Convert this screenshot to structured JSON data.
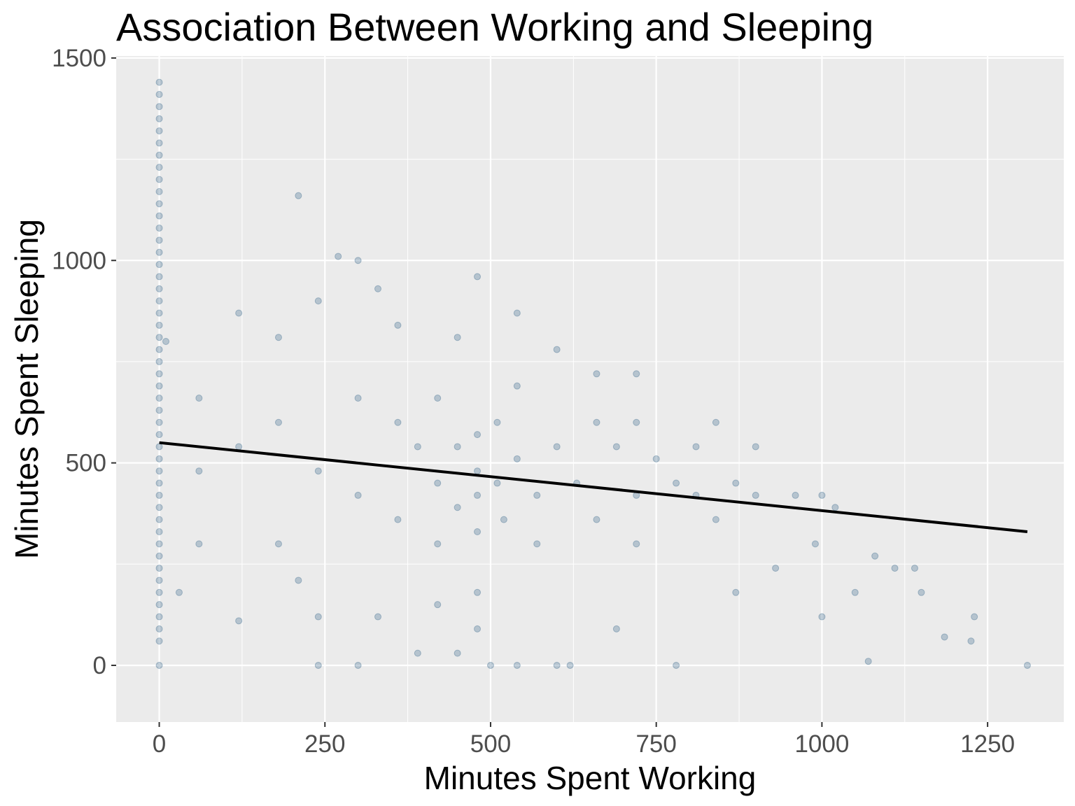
{
  "chart_data": {
    "type": "scatter",
    "title": "Association Between Working and Sleeping",
    "xlabel": "Minutes Spent Working",
    "ylabel": "Minutes Spent Sleeping",
    "xlim": [
      -65,
      1365
    ],
    "ylim": [
      -140,
      1505
    ],
    "x_ticks": [
      0,
      250,
      500,
      750,
      1000,
      1250
    ],
    "y_ticks": [
      0,
      500,
      1000,
      1500
    ],
    "x_tick_labels": [
      "0",
      "250",
      "500",
      "750",
      "1000",
      "1250"
    ],
    "y_tick_labels": [
      "0",
      "500",
      "1000",
      "1500"
    ],
    "grid": true,
    "legend": "none",
    "colors": {
      "background": "#ebebeb",
      "grid": "#ffffff",
      "point": "#2c5f85",
      "trend": "#000000"
    },
    "series": [
      {
        "values": [
          [
            0,
            0
          ],
          [
            0,
            60
          ],
          [
            0,
            90
          ],
          [
            0,
            120
          ],
          [
            0,
            150
          ],
          [
            0,
            180
          ],
          [
            0,
            210
          ],
          [
            0,
            240
          ],
          [
            0,
            270
          ],
          [
            0,
            300
          ],
          [
            0,
            330
          ],
          [
            0,
            360
          ],
          [
            0,
            390
          ],
          [
            0,
            420
          ],
          [
            0,
            450
          ],
          [
            0,
            480
          ],
          [
            0,
            510
          ],
          [
            0,
            540
          ],
          [
            0,
            570
          ],
          [
            0,
            600
          ],
          [
            0,
            630
          ],
          [
            0,
            660
          ],
          [
            0,
            690
          ],
          [
            0,
            720
          ],
          [
            0,
            750
          ],
          [
            0,
            780
          ],
          [
            0,
            810
          ],
          [
            0,
            840
          ],
          [
            0,
            870
          ],
          [
            0,
            900
          ],
          [
            0,
            930
          ],
          [
            0,
            960
          ],
          [
            0,
            990
          ],
          [
            0,
            1020
          ],
          [
            0,
            1050
          ],
          [
            0,
            1080
          ],
          [
            0,
            1110
          ],
          [
            0,
            1140
          ],
          [
            0,
            1170
          ],
          [
            0,
            1200
          ],
          [
            0,
            1230
          ],
          [
            0,
            1260
          ],
          [
            0,
            1290
          ],
          [
            0,
            1320
          ],
          [
            0,
            1350
          ],
          [
            0,
            1380
          ],
          [
            0,
            1410
          ],
          [
            0,
            1440
          ],
          [
            10,
            800
          ],
          [
            30,
            180
          ],
          [
            60,
            300
          ],
          [
            60,
            480
          ],
          [
            60,
            660
          ],
          [
            120,
            540
          ],
          [
            120,
            870
          ],
          [
            120,
            110
          ],
          [
            180,
            300
          ],
          [
            180,
            600
          ],
          [
            180,
            810
          ],
          [
            210,
            1160
          ],
          [
            210,
            210
          ],
          [
            240,
            0
          ],
          [
            240,
            120
          ],
          [
            240,
            900
          ],
          [
            240,
            480
          ],
          [
            270,
            1010
          ],
          [
            300,
            1000
          ],
          [
            300,
            0
          ],
          [
            300,
            660
          ],
          [
            300,
            420
          ],
          [
            330,
            930
          ],
          [
            330,
            120
          ],
          [
            360,
            600
          ],
          [
            360,
            360
          ],
          [
            360,
            840
          ],
          [
            390,
            30
          ],
          [
            390,
            540
          ],
          [
            420,
            450
          ],
          [
            420,
            300
          ],
          [
            420,
            660
          ],
          [
            420,
            150
          ],
          [
            450,
            540
          ],
          [
            450,
            390
          ],
          [
            450,
            30
          ],
          [
            450,
            810
          ],
          [
            480,
            960
          ],
          [
            480,
            570
          ],
          [
            480,
            480
          ],
          [
            480,
            420
          ],
          [
            480,
            330
          ],
          [
            480,
            180
          ],
          [
            480,
            90
          ],
          [
            500,
            0
          ],
          [
            510,
            600
          ],
          [
            510,
            450
          ],
          [
            520,
            360
          ],
          [
            540,
            870
          ],
          [
            540,
            690
          ],
          [
            540,
            510
          ],
          [
            540,
            0
          ],
          [
            570,
            420
          ],
          [
            570,
            300
          ],
          [
            600,
            780
          ],
          [
            600,
            540
          ],
          [
            600,
            0
          ],
          [
            620,
            0
          ],
          [
            630,
            450
          ],
          [
            660,
            720
          ],
          [
            660,
            360
          ],
          [
            660,
            600
          ],
          [
            690,
            540
          ],
          [
            690,
            90
          ],
          [
            720,
            720
          ],
          [
            720,
            420
          ],
          [
            720,
            600
          ],
          [
            720,
            300
          ],
          [
            750,
            510
          ],
          [
            780,
            450
          ],
          [
            780,
            0
          ],
          [
            810,
            420
          ],
          [
            810,
            540
          ],
          [
            840,
            360
          ],
          [
            840,
            600
          ],
          [
            870,
            450
          ],
          [
            870,
            180
          ],
          [
            900,
            540
          ],
          [
            900,
            420
          ],
          [
            930,
            240
          ],
          [
            960,
            420
          ],
          [
            990,
            300
          ],
          [
            1000,
            420
          ],
          [
            1000,
            120
          ],
          [
            1020,
            390
          ],
          [
            1050,
            180
          ],
          [
            1070,
            10
          ],
          [
            1080,
            270
          ],
          [
            1110,
            240
          ],
          [
            1140,
            240
          ],
          [
            1150,
            180
          ],
          [
            1185,
            70
          ],
          [
            1225,
            60
          ],
          [
            1230,
            120
          ],
          [
            1310,
            0
          ]
        ]
      }
    ],
    "trend_line": {
      "x": [
        0,
        1310
      ],
      "y": [
        550,
        330
      ]
    }
  }
}
